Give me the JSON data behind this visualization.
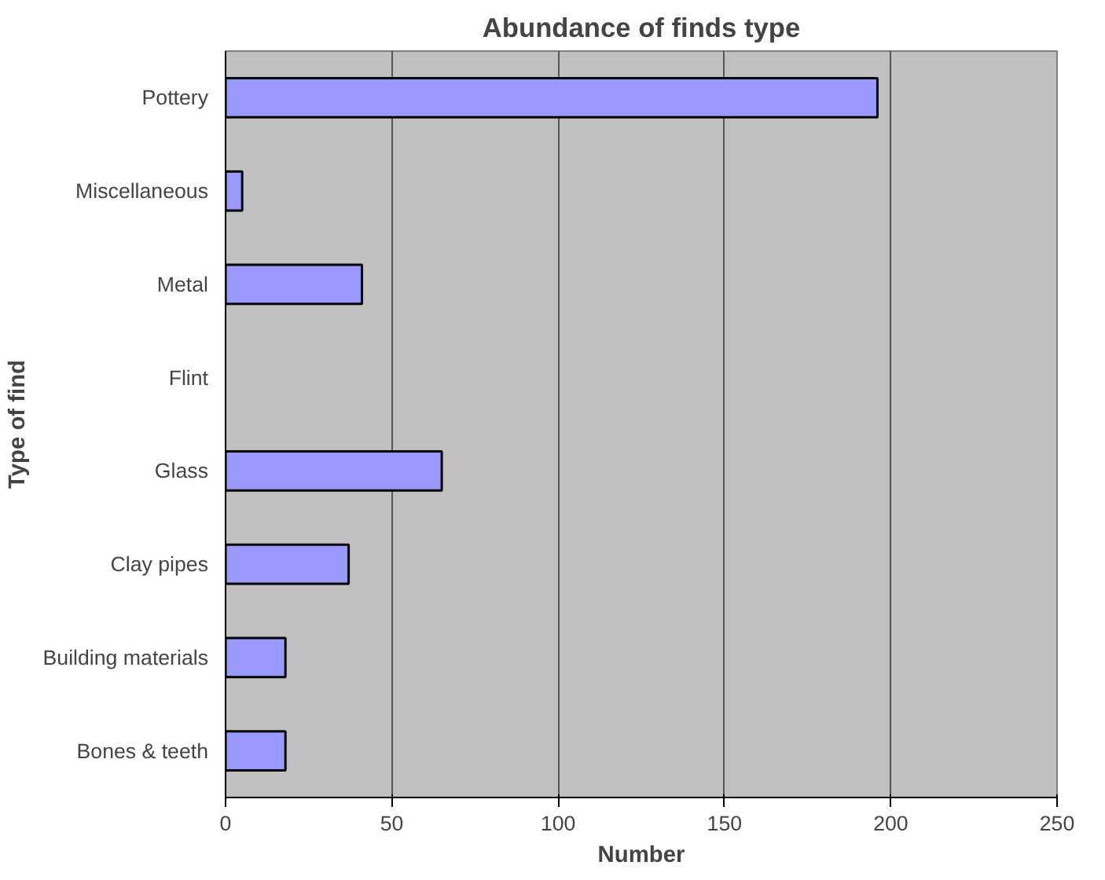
{
  "chart_data": {
    "type": "bar",
    "orientation": "horizontal",
    "title": "Abundance of finds type",
    "xlabel": "Number",
    "ylabel": "Type of find",
    "categories": [
      "Pottery",
      "Miscellaneous",
      "Metal",
      "Flint",
      "Glass",
      "Clay pipes",
      "Building materials",
      "Bones & teeth"
    ],
    "values": [
      196,
      5,
      41,
      null,
      65,
      37,
      18,
      18
    ],
    "color": "#9999ff",
    "xlim": [
      0,
      250
    ],
    "xticks": [
      0,
      50,
      100,
      150,
      200,
      250
    ],
    "grid": "x"
  }
}
